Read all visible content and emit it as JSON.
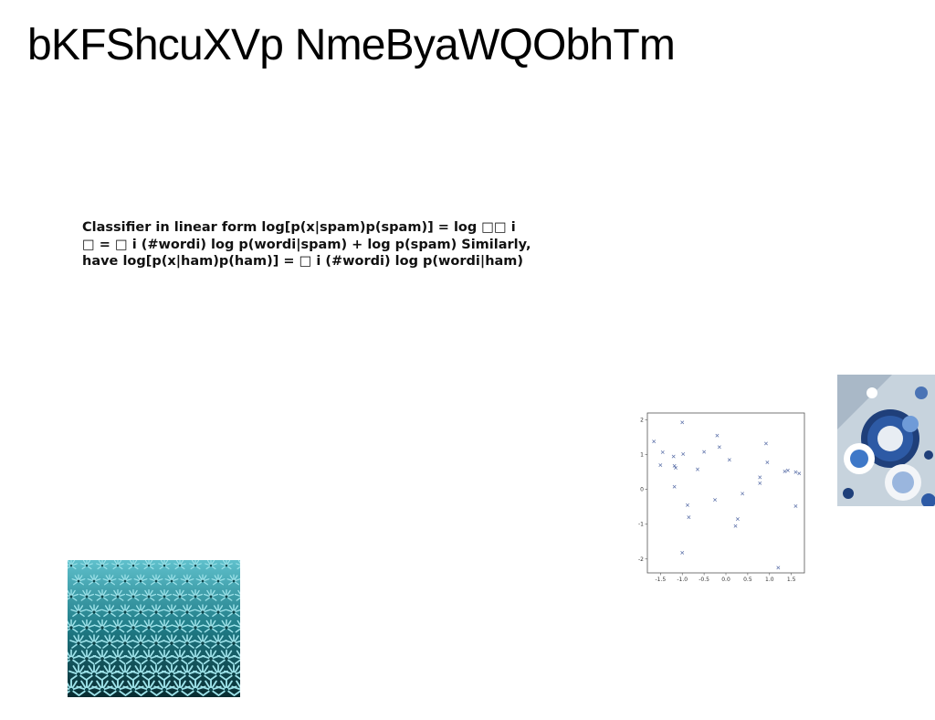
{
  "slide": {
    "title": "bKFShcuXVp NmeByaWQObhTm",
    "body_lines": [
      "Classifier in linear form log[p(x|spam)p(spam)] = log □□ i",
      "□ = □ i (#wordi) log p(wordi|spam) + log p(spam) Similarly,",
      "have log[p(x|ham)p(ham)] = □ i (#wordi) log p(wordi|ham)"
    ]
  },
  "images": {
    "palms": {
      "icon": "palm-field-photo"
    },
    "plates": {
      "icon": "blue-tableware-photo"
    }
  },
  "chart_data": {
    "type": "scatter",
    "marker": "x",
    "color": "#5a6fa8",
    "xlim": [
      -1.8,
      1.8
    ],
    "ylim": [
      -2.4,
      2.2
    ],
    "xticks": [
      "-1.5",
      "-1.0",
      "-0.5",
      "0.0",
      "0.5",
      "1.0",
      "1.5"
    ],
    "yticks": [
      "2",
      "1",
      "0",
      "-1",
      "-2"
    ],
    "points": [
      [
        -1.65,
        1.38
      ],
      [
        -1.5,
        0.7
      ],
      [
        -1.45,
        1.07
      ],
      [
        -1.2,
        0.95
      ],
      [
        -1.18,
        0.68
      ],
      [
        -1.15,
        0.62
      ],
      [
        -1.18,
        0.08
      ],
      [
        -1.0,
        1.93
      ],
      [
        -0.98,
        1.02
      ],
      [
        -1.0,
        -1.82
      ],
      [
        -0.88,
        -0.45
      ],
      [
        -0.85,
        -0.8
      ],
      [
        -0.65,
        0.58
      ],
      [
        -0.5,
        1.08
      ],
      [
        -0.25,
        -0.3
      ],
      [
        -0.2,
        1.55
      ],
      [
        -0.15,
        1.22
      ],
      [
        0.08,
        0.85
      ],
      [
        0.22,
        -1.05
      ],
      [
        0.27,
        -0.85
      ],
      [
        0.38,
        -0.12
      ],
      [
        0.78,
        0.35
      ],
      [
        0.78,
        0.18
      ],
      [
        0.92,
        1.32
      ],
      [
        0.95,
        0.78
      ],
      [
        1.2,
        -2.25
      ],
      [
        1.35,
        0.52
      ],
      [
        1.42,
        0.55
      ],
      [
        1.6,
        0.5
      ],
      [
        1.6,
        -0.48
      ],
      [
        1.68,
        0.46
      ]
    ]
  }
}
